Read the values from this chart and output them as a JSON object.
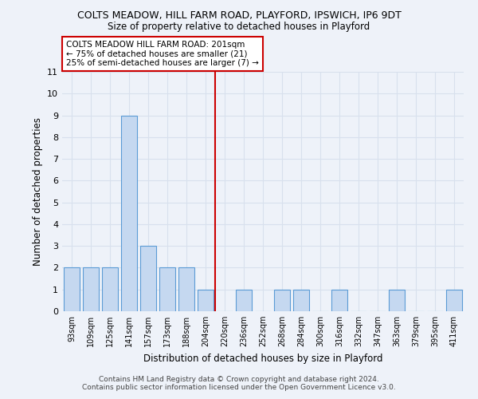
{
  "title1": "COLTS MEADOW, HILL FARM ROAD, PLAYFORD, IPSWICH, IP6 9DT",
  "title2": "Size of property relative to detached houses in Playford",
  "xlabel": "Distribution of detached houses by size in Playford",
  "ylabel": "Number of detached properties",
  "categories": [
    "93sqm",
    "109sqm",
    "125sqm",
    "141sqm",
    "157sqm",
    "173sqm",
    "188sqm",
    "204sqm",
    "220sqm",
    "236sqm",
    "252sqm",
    "268sqm",
    "284sqm",
    "300sqm",
    "316sqm",
    "332sqm",
    "347sqm",
    "363sqm",
    "379sqm",
    "395sqm",
    "411sqm"
  ],
  "values": [
    2,
    2,
    2,
    9,
    3,
    2,
    2,
    1,
    0,
    1,
    0,
    1,
    1,
    0,
    1,
    0,
    0,
    1,
    0,
    0,
    1
  ],
  "bar_color": "#c5d8f0",
  "bar_edge_color": "#5b9bd5",
  "vline_x": 7.5,
  "vline_color": "#cc0000",
  "annotation_text": "COLTS MEADOW HILL FARM ROAD: 201sqm\n← 75% of detached houses are smaller (21)\n25% of semi-detached houses are larger (7) →",
  "annotation_box_color": "#ffffff",
  "annotation_box_edge": "#cc0000",
  "ylim": [
    0,
    11
  ],
  "yticks": [
    0,
    1,
    2,
    3,
    4,
    5,
    6,
    7,
    8,
    9,
    10,
    11
  ],
  "footer": "Contains HM Land Registry data © Crown copyright and database right 2024.\nContains public sector information licensed under the Open Government Licence v3.0.",
  "bg_color": "#eef2f9",
  "grid_color": "#d8e0ed"
}
